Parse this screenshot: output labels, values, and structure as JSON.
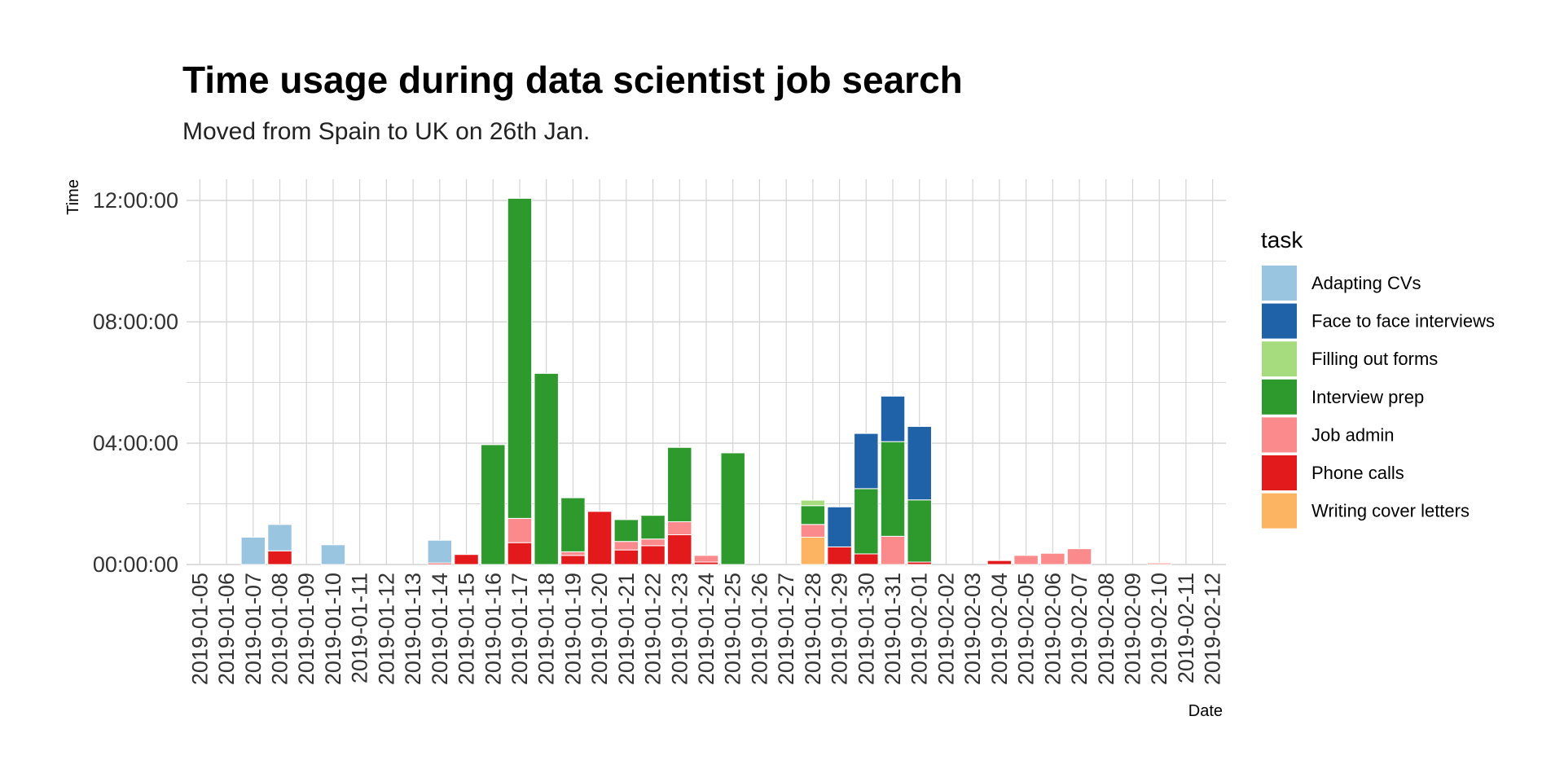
{
  "chart_data": {
    "type": "bar",
    "stacked": true,
    "title": "Time usage during data scientist job search",
    "subtitle": "Moved from Spain to UK on 26th Jan.",
    "xlabel": "Date",
    "ylabel": "Time",
    "yunit": "hours",
    "ylim": [
      0,
      12.7
    ],
    "yticks": [
      0,
      4,
      8,
      12
    ],
    "ytick_labels": [
      "00:00:00",
      "04:00:00",
      "08:00:00",
      "12:00:00"
    ],
    "grid": true,
    "legend_title": "task",
    "legend_position": "right",
    "categories": [
      "2019-01-05",
      "2019-01-06",
      "2019-01-07",
      "2019-01-08",
      "2019-01-09",
      "2019-01-10",
      "2019-01-11",
      "2019-01-12",
      "2019-01-13",
      "2019-01-14",
      "2019-01-15",
      "2019-01-16",
      "2019-01-17",
      "2019-01-18",
      "2019-01-19",
      "2019-01-20",
      "2019-01-21",
      "2019-01-22",
      "2019-01-23",
      "2019-01-24",
      "2019-01-25",
      "2019-01-26",
      "2019-01-27",
      "2019-01-28",
      "2019-01-29",
      "2019-01-30",
      "2019-01-31",
      "2019-02-01",
      "2019-02-02",
      "2019-02-03",
      "2019-02-04",
      "2019-02-05",
      "2019-02-06",
      "2019-02-07",
      "2019-02-08",
      "2019-02-09",
      "2019-02-10",
      "2019-02-11",
      "2019-02-12"
    ],
    "series": [
      {
        "name": "Writing cover letters",
        "color": "#fdb462",
        "values": [
          0,
          0,
          0,
          0,
          0,
          0,
          0,
          0,
          0,
          0,
          0,
          0,
          0,
          0,
          0,
          0,
          0,
          0,
          0,
          0,
          0,
          0,
          0,
          0.9,
          0,
          0,
          0,
          0,
          0,
          0,
          0,
          0,
          0,
          0,
          0,
          0,
          0,
          0,
          0
        ]
      },
      {
        "name": "Phone calls",
        "color": "#e31a1c",
        "values": [
          0,
          0,
          0,
          0.45,
          0,
          0,
          0,
          0,
          0,
          0.05,
          0.33,
          0,
          0.72,
          0,
          0.3,
          1.75,
          0.48,
          0.62,
          0.98,
          0.08,
          0,
          0,
          0,
          0,
          0.58,
          0.35,
          0,
          0.08,
          0,
          0,
          0.13,
          0,
          0,
          0,
          0,
          0,
          0,
          0,
          0
        ]
      },
      {
        "name": "Job admin",
        "color": "#fb8a8c",
        "values": [
          0,
          0,
          0,
          0,
          0,
          0,
          0,
          0,
          0,
          0,
          0,
          0,
          0.8,
          0,
          0.12,
          0,
          0.28,
          0.22,
          0.43,
          0.22,
          0,
          0,
          0,
          0.42,
          0,
          0,
          0.93,
          0,
          0,
          0,
          0,
          0.3,
          0.37,
          0.52,
          0,
          0,
          0.05,
          0,
          0
        ]
      },
      {
        "name": "Interview prep",
        "color": "#2e9a2e",
        "values": [
          0,
          0,
          0,
          0,
          0,
          0,
          0,
          0,
          0,
          0,
          0,
          3.95,
          10.55,
          6.3,
          1.78,
          0,
          0.72,
          0.78,
          2.45,
          0,
          3.68,
          0,
          0,
          0.62,
          0,
          2.15,
          3.12,
          2.05,
          0,
          0,
          0,
          0,
          0,
          0,
          0,
          0,
          0,
          0,
          0
        ]
      },
      {
        "name": "Filling out forms",
        "color": "#a6dc7e",
        "values": [
          0,
          0,
          0,
          0,
          0,
          0,
          0,
          0,
          0,
          0,
          0,
          0,
          0,
          0,
          0,
          0,
          0,
          0,
          0,
          0,
          0,
          0,
          0,
          0.18,
          0,
          0,
          0,
          0,
          0,
          0,
          0,
          0,
          0,
          0,
          0,
          0,
          0,
          0,
          0
        ]
      },
      {
        "name": "Face to face interviews",
        "color": "#1f62a8",
        "values": [
          0,
          0,
          0,
          0,
          0,
          0,
          0,
          0,
          0,
          0,
          0,
          0,
          0,
          0,
          0,
          0,
          0,
          0,
          0,
          0,
          0,
          0,
          0,
          0,
          1.32,
          1.82,
          1.5,
          2.42,
          0,
          0,
          0,
          0,
          0,
          0,
          0,
          0,
          0,
          0,
          0
        ]
      },
      {
        "name": "Adapting CVs",
        "color": "#9ac5e0",
        "values": [
          0,
          0,
          0.9,
          0.87,
          0,
          0.65,
          0,
          0,
          0,
          0.75,
          0,
          0,
          0,
          0,
          0,
          0,
          0,
          0,
          0,
          0,
          0,
          0,
          0,
          0,
          0,
          0,
          0,
          0,
          0,
          0,
          0,
          0,
          0,
          0,
          0,
          0,
          0,
          0,
          0
        ]
      }
    ],
    "legend_order": [
      "Adapting CVs",
      "Face to face interviews",
      "Filling out forms",
      "Interview prep",
      "Job admin",
      "Phone calls",
      "Writing cover letters"
    ]
  }
}
